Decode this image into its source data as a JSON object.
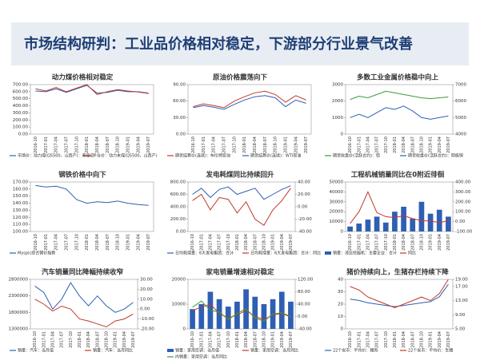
{
  "slide_title": "市场结构研判：工业品价格相对稳定，下游部分行业景气改善",
  "chart_data": [
    {
      "type": "line",
      "title": "动力煤价格相对稳定",
      "categories": [
        "2016-10",
        "2017-01",
        "2017-04",
        "2017-07",
        "2017-10",
        "2018-01",
        "2018-04",
        "2018-07",
        "2018-10",
        "2019-01",
        "2019-04",
        "2019-07"
      ],
      "series": [
        {
          "name": "市场价：动力煤(Q5500，山西产)：秦皇岛",
          "color": "#2f5fb3",
          "values": [
            610,
            600,
            640,
            590,
            640,
            690,
            580,
            590,
            620,
            600,
            600,
            580
          ]
        },
        {
          "name": "平仓价：动力末煤(Q5500，山西产)",
          "color": "#c0392b",
          "values": [
            640,
            610,
            660,
            600,
            650,
            700,
            560,
            600,
            630,
            610,
            595,
            575
          ]
        }
      ],
      "ylim": [
        0,
        700
      ],
      "yticks": [
        {
          "value": 0,
          "label": "0.00"
        },
        {
          "value": 100,
          "label": "100.00"
        },
        {
          "value": 200,
          "label": "200.00"
        },
        {
          "value": 300,
          "label": "300.00"
        },
        {
          "value": 400,
          "label": "400.00"
        },
        {
          "value": 500,
          "label": "500.00"
        },
        {
          "value": 600,
          "label": "600.00"
        },
        {
          "value": 700,
          "label": "700.00"
        }
      ]
    },
    {
      "type": "line",
      "title": "原油价格震荡向下",
      "categories": [
        "2016-10",
        "2017-01",
        "2017-04",
        "2017-07",
        "2017-10",
        "2018-01",
        "2018-04",
        "2018-07",
        "2018-10",
        "2019-01",
        "2019-04",
        "2019-07"
      ],
      "series": [
        {
          "name": "期货结算价(连续)：布伦特原油",
          "color": "#c0392b",
          "values": [
            50,
            55,
            52,
            48,
            60,
            68,
            75,
            78,
            72,
            58,
            70,
            62
          ]
        },
        {
          "name": "期货结算价(连续)：WTI原油",
          "color": "#2f5fb3",
          "values": [
            48,
            52,
            49,
            45,
            54,
            62,
            68,
            70,
            66,
            50,
            62,
            56
          ]
        }
      ],
      "ylim": [
        0,
        90
      ],
      "yticks": [
        {
          "value": 0,
          "label": "0.00"
        },
        {
          "value": 30,
          "label": "30.00"
        },
        {
          "value": 60,
          "label": "60.00"
        },
        {
          "value": 90,
          "label": "90.00"
        }
      ]
    },
    {
      "type": "line",
      "title": "多数工业金属价格稳中向上",
      "categories": [
        "2016-10",
        "2017-01",
        "2017-04",
        "2017-07",
        "2017-10",
        "2018-01",
        "2018-04",
        "2018-07",
        "2018-10",
        "2019-01",
        "2019-04",
        "2019-07"
      ],
      "series": [
        {
          "name": "期货收盘价(活跃合约)：铝",
          "color": "#3a9a3a",
          "values": [
            2100,
            2300,
            2200,
            2400,
            2600,
            2500,
            2400,
            2300,
            2200,
            2150,
            2200,
            2250
          ]
        },
        {
          "name": "期货收盘价(活跃合约)：阴极铜",
          "color": "#2f5fb3",
          "axis": "y2",
          "values": [
            5000,
            5200,
            5000,
            5300,
            5600,
            5500,
            5700,
            5400,
            5000,
            4900,
            5000,
            5100
          ]
        }
      ],
      "ylim": [
        0,
        3000
      ],
      "yticks": [
        0,
        1000,
        2000,
        3000
      ],
      "y2lim": [
        4000,
        7000
      ],
      "y2ticks": [
        4000,
        5000,
        6000,
        7000
      ]
    },
    {
      "type": "line",
      "title": "钢铁价格中向下",
      "categories": [
        "2016-10",
        "2017-01",
        "2017-04",
        "2017-07",
        "2017-10",
        "2018-01",
        "2018-04",
        "2018-07",
        "2018-10",
        "2019-01",
        "2019-04",
        "2019-07"
      ],
      "series": [
        {
          "name": "Myspic综合钢价指数",
          "color": "#2f5fb3",
          "values": [
            165,
            163,
            164,
            160,
            145,
            140,
            142,
            141,
            143,
            140,
            138,
            137
          ]
        }
      ],
      "ylim": [
        100,
        170
      ],
      "yticks": [
        {
          "value": 100,
          "label": "100.00"
        },
        {
          "value": 110,
          "label": "110.00"
        },
        {
          "value": 120,
          "label": "120.00"
        },
        {
          "value": 130,
          "label": "130.00"
        },
        {
          "value": 140,
          "label": "140.00"
        },
        {
          "value": 150,
          "label": "150.00"
        },
        {
          "value": 160,
          "label": "160.00"
        },
        {
          "value": 170,
          "label": "170.00"
        }
      ]
    },
    {
      "type": "line",
      "title": "发电耗煤同比持续回升",
      "categories": [
        "2016-10",
        "2017-01",
        "2017-04",
        "2017-07",
        "2017-10",
        "2018-01",
        "2018-04",
        "2018-07",
        "2018-10",
        "2019-01",
        "2019-04",
        "2019-07"
      ],
      "series": [
        {
          "name": "日均耗煤量：6大发电集团：合计",
          "color": "#2f5fb3",
          "values": [
            600,
            700,
            550,
            680,
            720,
            600,
            650,
            700,
            520,
            600,
            680,
            740
          ]
        },
        {
          "name": "日均耗煤量：6大发电集团：合计：同比",
          "color": "#c0392b",
          "axis": "y2",
          "values": [
            10,
            20,
            -5,
            15,
            12,
            -10,
            8,
            -20,
            -30,
            -5,
            10,
            30
          ]
        }
      ],
      "ylim": [
        0,
        800
      ],
      "yticks": [
        {
          "value": 0,
          "label": "0.00"
        },
        {
          "value": 200,
          "label": "200.00"
        },
        {
          "value": 400,
          "label": "400.00"
        },
        {
          "value": 600,
          "label": "600.00"
        },
        {
          "value": 800,
          "label": "800.00"
        }
      ],
      "y2lim": [
        -40,
        40
      ],
      "y2ticks": [
        {
          "value": -40,
          "label": "-40.00"
        },
        {
          "value": -20,
          "label": "-20.00"
        },
        {
          "value": 0,
          "label": "0.00"
        },
        {
          "value": 20,
          "label": "20.00"
        },
        {
          "value": 40,
          "label": "40.00"
        }
      ]
    },
    {
      "type": "bar-line",
      "title": "工程机械销量同比在0附近徘徊",
      "categories": [
        "2016-10",
        "2017-01",
        "2017-04",
        "2017-07",
        "2017-10",
        "2018-01",
        "2018-04",
        "2018-07",
        "2018-10",
        "2019-01",
        "2019-04",
        "2019-07"
      ],
      "series": [
        {
          "name": "销量：液压挖掘机：主要企业：合计",
          "color": "#2f5fb3",
          "type": "bar",
          "values": [
            5000,
            8000,
            12000,
            15000,
            9000,
            20000,
            25000,
            13000,
            30000,
            18000,
            22000,
            15000
          ]
        },
        {
          "name": "同比",
          "color": "#c0392b",
          "type": "line",
          "axis": "y2",
          "values": [
            -20,
            100,
            300,
            90,
            50,
            40,
            60,
            30,
            10,
            5,
            -10,
            8
          ]
        }
      ],
      "ylim": [
        0,
        50000
      ],
      "yticks": [
        0,
        10000,
        20000,
        30000,
        40000,
        50000
      ],
      "y2lim": [
        -100,
        400
      ],
      "y2ticks": [
        {
          "value": -100,
          "label": "-100.00"
        },
        {
          "value": 0,
          "label": "0.00"
        },
        {
          "value": 100,
          "label": "100.00"
        },
        {
          "value": 200,
          "label": "200.00"
        },
        {
          "value": 300,
          "label": "300.00"
        },
        {
          "value": 400,
          "label": "400.00"
        }
      ]
    },
    {
      "type": "line",
      "title": "汽车销量同比降幅持续收窄",
      "categories": [
        "2016-10",
        "2017-01",
        "2017-04",
        "2017-07",
        "2017-10",
        "2018-01",
        "2018-04",
        "2018-07",
        "2018-10",
        "2019-01",
        "2019-04",
        "2019-07"
      ],
      "series": [
        {
          "name": "销量：汽车：当月值",
          "color": "#2f5fb3",
          "values": [
            2600000,
            2400000,
            1900000,
            2200000,
            2700000,
            2300000,
            2000000,
            2300000,
            2000000,
            1800000,
            1900000,
            2100000
          ]
        },
        {
          "name": "销量：汽车：当月同比",
          "color": "#c0392b",
          "axis": "y2",
          "values": [
            10,
            5,
            -2,
            3,
            0,
            -10,
            -12,
            -15,
            -18,
            -12,
            -10,
            -5
          ]
        }
      ],
      "ylim": [
        1300000,
        2800000
      ],
      "yticks": [
        1300000,
        1800000,
        2300000,
        2800000
      ],
      "y2lim": [
        -20,
        30
      ],
      "y2ticks": [
        {
          "value": -20,
          "label": "-20.00"
        },
        {
          "value": -10,
          "label": "-10.00"
        },
        {
          "value": 0,
          "label": "0.00"
        },
        {
          "value": 10,
          "label": "10.00"
        },
        {
          "value": 20,
          "label": "20.00"
        },
        {
          "value": 30,
          "label": "30.00"
        }
      ]
    },
    {
      "type": "bar-line",
      "title": "家电销量增速相对稳定",
      "categories": [
        "2016-10",
        "2017-01",
        "2017-04",
        "2017-07",
        "2017-10",
        "2018-01",
        "2018-04",
        "2018-07",
        "2018-10",
        "2019-01",
        "2019-04",
        "2019-07"
      ],
      "series": [
        {
          "name": "销量：家用空调：当月值",
          "color": "#2f5fb3",
          "type": "bar",
          "values": [
            8000,
            10000,
            15000,
            12000,
            9000,
            11000,
            16000,
            13000,
            10000,
            12000,
            15000,
            11000
          ]
        },
        {
          "name": "销量：家用空调：当月同比",
          "color": "#c0392b",
          "type": "line",
          "axis": "y2",
          "values": [
            20,
            30,
            40,
            10,
            -5,
            5,
            20,
            0,
            -10,
            5,
            10,
            -2
          ]
        },
        {
          "name": "内销量：家用空调：当月同比",
          "color": "#3a9a3a",
          "type": "line",
          "axis": "y2",
          "values": [
            30,
            50,
            20,
            15,
            -10,
            10,
            25,
            -5,
            -15,
            8,
            12,
            0
          ]
        }
      ],
      "ylim": [
        0,
        20000
      ],
      "yticks": [
        0,
        10000,
        20000
      ],
      "y2lim": [
        -40,
        120
      ],
      "y2ticks": [
        {
          "value": -40,
          "label": "-40.00"
        },
        {
          "value": 0,
          "label": "0.00"
        },
        {
          "value": 40,
          "label": "40.00"
        },
        {
          "value": 80,
          "label": "80.00"
        },
        {
          "value": 120,
          "label": "120.00"
        }
      ]
    },
    {
      "type": "line",
      "title": "猪价持续向上，生猪存栏持续下降",
      "categories": [
        "2016-10",
        "2017-01",
        "2017-04",
        "2017-07",
        "2017-10",
        "2018-01",
        "2018-04",
        "2018-07",
        "2018-10",
        "2019-01",
        "2019-04",
        "2019-07"
      ],
      "series": [
        {
          "name": "22个省市：平均价：猪肉",
          "color": "#2f5fb3",
          "values": [
            24,
            23,
            21,
            20,
            19,
            18,
            19,
            20,
            21,
            22,
            26,
            36
          ]
        },
        {
          "name": "22个省市：平均价：生猪",
          "color": "#c0392b",
          "axis": "y2",
          "values": [
            17,
            16,
            14,
            13,
            12,
            11,
            12,
            13,
            14,
            13,
            15,
            19
          ]
        }
      ],
      "ylim": [
        0,
        40
      ],
      "yticks": [
        0,
        10,
        20,
        30,
        40
      ],
      "y2lim": [
        5,
        19
      ],
      "y2ticks": [
        {
          "value": 5,
          "label": "5.00"
        },
        {
          "value": 9,
          "label": "9.00"
        },
        {
          "value": 13,
          "label": "13.00"
        },
        {
          "value": 17,
          "label": "17.00"
        },
        {
          "value": 19,
          "label": "19.00"
        }
      ]
    }
  ]
}
